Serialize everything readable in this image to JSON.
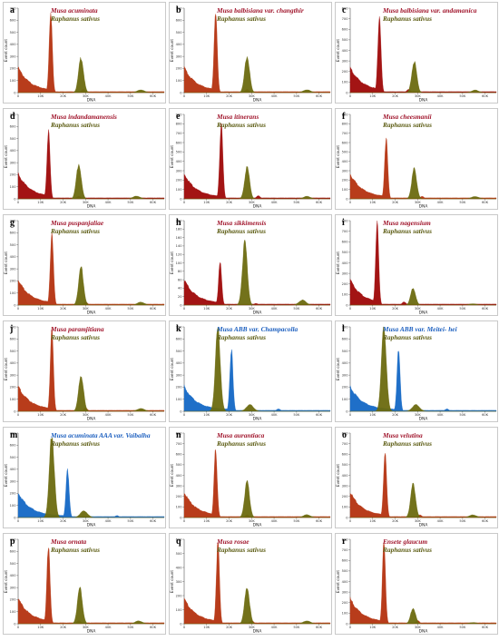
{
  "colors": {
    "musa_red": "#a31414",
    "musa_brown": "#b83c1b",
    "musa_blue": "#1f6fc8",
    "raphanus_olive": "#6b6a0f",
    "label_red": "#a0142b",
    "label_olive": "#5a5a10",
    "label_blue": "#1c5fbf"
  },
  "chart_data": [
    {
      "panel": "a",
      "type": "area",
      "label_species": "Musa acuminata",
      "label_ref": "Raphanus sativus",
      "label_color": "red",
      "fill": "musa_brown",
      "xlabel": "DNA",
      "ylabel": "Event count",
      "xlim": [
        0,
        65000
      ],
      "ylim": [
        0,
        700
      ],
      "x_ticks": [
        "0",
        "10K",
        "20K",
        "30K",
        "40K",
        "50K",
        "60K"
      ],
      "y_ticks": [
        "0",
        "100",
        "200",
        "300",
        "400",
        "500",
        "600",
        "700"
      ],
      "series": [
        {
          "name": "Musa acuminata",
          "peak_x": 14500,
          "peak_count": 690
        },
        {
          "name": "Raphanus sativus",
          "peak_x": 28000,
          "peak_count": 290
        }
      ]
    },
    {
      "panel": "b",
      "type": "area",
      "label_species": "Musa balbisiana var. changthir",
      "label_ref": "Raphanus sativus",
      "label_color": "red",
      "fill": "musa_brown",
      "xlabel": "DNA",
      "ylabel": "Event count",
      "xlim": [
        0,
        65000
      ],
      "ylim": [
        0,
        700
      ],
      "x_ticks": [
        "0",
        "10K",
        "20K",
        "30K",
        "40K",
        "50K",
        "60K"
      ],
      "y_ticks": [
        "0",
        "100",
        "200",
        "300",
        "400",
        "500",
        "600",
        "700"
      ],
      "series": [
        {
          "name": "Musa balbisiana var. changthir",
          "peak_x": 14000,
          "peak_count": 690
        },
        {
          "name": "Raphanus sativus",
          "peak_x": 28000,
          "peak_count": 300
        }
      ]
    },
    {
      "panel": "c",
      "type": "area",
      "label_species": "Musa balbisiana var. andamanica",
      "label_ref": "Raphanus sativus",
      "label_color": "red",
      "fill": "musa_red",
      "xlabel": "DNA",
      "ylabel": "Event count",
      "xlim": [
        0,
        65000
      ],
      "ylim": [
        0,
        800
      ],
      "x_ticks": [
        "0",
        "10K",
        "20K",
        "30K",
        "40K",
        "50K",
        "60K"
      ],
      "y_ticks": [
        "0",
        "100",
        "200",
        "300",
        "400",
        "500",
        "600",
        "700",
        "800"
      ],
      "series": [
        {
          "name": "Musa balbisiana var. andamanica",
          "peak_x": 13000,
          "peak_count": 740
        },
        {
          "name": "Raphanus sativus",
          "peak_x": 28500,
          "peak_count": 300
        }
      ]
    },
    {
      "panel": "d",
      "type": "area",
      "label_species": "Musa indandamanensis",
      "label_ref": "Raphanus sativus",
      "label_color": "red",
      "fill": "musa_red",
      "xlabel": "DNA",
      "ylabel": "Event count",
      "xlim": [
        0,
        65000
      ],
      "ylim": [
        0,
        700
      ],
      "x_ticks": [
        "0",
        "10K",
        "20K",
        "30K",
        "40K",
        "50K",
        "60K"
      ],
      "y_ticks": [
        "0",
        "100",
        "200",
        "300",
        "400",
        "500",
        "600",
        "700"
      ],
      "series": [
        {
          "name": "Musa indandamanensis",
          "peak_x": 13500,
          "peak_count": 560
        },
        {
          "name": "Raphanus sativus",
          "peak_x": 27000,
          "peak_count": 290
        }
      ]
    },
    {
      "panel": "e",
      "type": "area",
      "label_species": "Musa itinerans",
      "label_ref": "Raphanus sativus",
      "label_color": "red",
      "fill": "musa_red",
      "xlabel": "DNA",
      "ylabel": "Event count",
      "xlim": [
        0,
        65000
      ],
      "ylim": [
        0,
        900
      ],
      "x_ticks": [
        "0",
        "10K",
        "20K",
        "30K",
        "40K",
        "50K",
        "60K"
      ],
      "y_ticks": [
        "0",
        "100",
        "200",
        "300",
        "400",
        "500",
        "600",
        "700",
        "800",
        "900"
      ],
      "series": [
        {
          "name": "Musa itinerans",
          "peak_x": 16500,
          "peak_count": 820
        },
        {
          "name": "Raphanus sativus",
          "peak_x": 28000,
          "peak_count": 340
        }
      ]
    },
    {
      "panel": "f",
      "type": "area",
      "label_species": "Musa cheesmanii",
      "label_ref": "Raphanus sativus",
      "label_color": "red",
      "fill": "musa_brown",
      "xlabel": "DNA",
      "ylabel": "Event count",
      "xlim": [
        0,
        65000
      ],
      "ylim": [
        0,
        900
      ],
      "x_ticks": [
        "0",
        "10K",
        "20K",
        "30K",
        "40K",
        "50K",
        "60K"
      ],
      "y_ticks": [
        "0",
        "100",
        "200",
        "300",
        "400",
        "500",
        "600",
        "700",
        "800",
        "900"
      ],
      "series": [
        {
          "name": "Musa cheesmanii",
          "peak_x": 16000,
          "peak_count": 650
        },
        {
          "name": "Raphanus sativus",
          "peak_x": 28500,
          "peak_count": 320
        }
      ]
    },
    {
      "panel": "g",
      "type": "area",
      "label_species": "Musa puspanjaliae",
      "label_ref": "Raphanus sativus",
      "label_color": "red",
      "fill": "musa_brown",
      "xlabel": "DNA",
      "ylabel": "Event count",
      "xlim": [
        0,
        65000
      ],
      "ylim": [
        0,
        700
      ],
      "x_ticks": [
        "0",
        "10K",
        "20K",
        "30K",
        "40K",
        "50K",
        "60K"
      ],
      "y_ticks": [
        "0",
        "100",
        "200",
        "300",
        "400",
        "500",
        "600",
        "700"
      ],
      "series": [
        {
          "name": "Musa puspanjaliae",
          "peak_x": 15000,
          "peak_count": 620
        },
        {
          "name": "Raphanus sativus",
          "peak_x": 28000,
          "peak_count": 310
        }
      ]
    },
    {
      "panel": "h",
      "type": "area",
      "label_species": "Musa sikkimensis",
      "label_ref": "Raphanus sativus",
      "label_color": "red",
      "fill": "musa_red",
      "xlabel": "DNA",
      "ylabel": "Event count",
      "xlim": [
        0,
        65000
      ],
      "ylim": [
        0,
        200
      ],
      "x_ticks": [
        "0",
        "10K",
        "20K",
        "30K",
        "40K",
        "50K",
        "60K"
      ],
      "y_ticks": [
        "0",
        "20",
        "40",
        "60",
        "80",
        "100",
        "120",
        "140",
        "160",
        "180",
        "200"
      ],
      "series": [
        {
          "name": "Musa sikkimensis",
          "peak_x": 16000,
          "peak_count": 100
        },
        {
          "name": "Raphanus sativus",
          "peak_x": 27000,
          "peak_count": 150
        }
      ]
    },
    {
      "panel": "i",
      "type": "area",
      "label_species": "Musa nagensium",
      "label_ref": "Raphanus sativus",
      "label_color": "red",
      "fill": "musa_red",
      "xlabel": "DNA",
      "ylabel": "Event count",
      "xlim": [
        0,
        65000
      ],
      "ylim": [
        0,
        800
      ],
      "x_ticks": [
        "0",
        "10K",
        "20K",
        "30K",
        "40K",
        "50K",
        "60K"
      ],
      "y_ticks": [
        "0",
        "100",
        "200",
        "300",
        "400",
        "500",
        "600",
        "700",
        "800"
      ],
      "series": [
        {
          "name": "Musa nagensium",
          "peak_x": 12000,
          "peak_count": 760
        },
        {
          "name": "Raphanus sativus",
          "peak_x": 28000,
          "peak_count": 160
        }
      ]
    },
    {
      "panel": "j",
      "type": "area",
      "label_species": "Musa paramjitiana",
      "label_ref": "Raphanus sativus",
      "label_color": "red",
      "fill": "musa_brown",
      "xlabel": "DNA",
      "ylabel": "Event count",
      "xlim": [
        0,
        65000
      ],
      "ylim": [
        0,
        700
      ],
      "x_ticks": [
        "0",
        "10K",
        "20K",
        "30K",
        "40K",
        "50K",
        "60K"
      ],
      "y_ticks": [
        "0",
        "100",
        "200",
        "300",
        "400",
        "500",
        "600",
        "700"
      ],
      "series": [
        {
          "name": "Musa paramjitiana",
          "peak_x": 15000,
          "peak_count": 680
        },
        {
          "name": "Raphanus sativus",
          "peak_x": 28000,
          "peak_count": 300
        }
      ]
    },
    {
      "panel": "k",
      "type": "area",
      "label_species": "Musa ABB var. Champacolla",
      "label_ref": "Raphanus sativus",
      "label_color": "blue",
      "fill": "musa_blue",
      "xlabel": "DNA",
      "ylabel": "Event count",
      "xlim": [
        0,
        65000
      ],
      "ylim": [
        0,
        700
      ],
      "x_ticks": [
        "0",
        "10K",
        "20K",
        "30K",
        "40K",
        "50K",
        "60K"
      ],
      "y_ticks": [
        "0",
        "100",
        "200",
        "300",
        "400",
        "500",
        "600",
        "700"
      ],
      "series": [
        {
          "name": "Musa ABB var. Champacolla",
          "peak_x": 21000,
          "peak_count": 520
        },
        {
          "name": "Raphanus sativus",
          "peak_x": 15000,
          "peak_count": 690
        }
      ]
    },
    {
      "panel": "l",
      "type": "area",
      "label_species": "Musa ABB var. Meitei- hei",
      "label_ref": "Raphanus sativus",
      "label_color": "blue",
      "fill": "musa_blue",
      "xlabel": "DNA",
      "ylabel": "Event count",
      "xlim": [
        0,
        65000
      ],
      "ylim": [
        0,
        700
      ],
      "x_ticks": [
        "0",
        "10K",
        "20K",
        "30K",
        "40K",
        "50K",
        "60K"
      ],
      "y_ticks": [
        "0",
        "100",
        "200",
        "300",
        "400",
        "500",
        "600",
        "700"
      ],
      "series": [
        {
          "name": "Musa ABB var. Meitei- hei",
          "peak_x": 21500,
          "peak_count": 500
        },
        {
          "name": "Raphanus sativus",
          "peak_x": 15000,
          "peak_count": 690
        }
      ]
    },
    {
      "panel": "m",
      "type": "area",
      "label_species": "Musa acuminata AAA var. Vaibalha",
      "label_ref": "Raphanus sativus",
      "label_color": "blue",
      "fill": "musa_blue",
      "xlabel": "DNA",
      "ylabel": "Event count",
      "xlim": [
        0,
        65000
      ],
      "ylim": [
        0,
        700
      ],
      "x_ticks": [
        "0",
        "10K",
        "20K",
        "30K",
        "40K",
        "50K",
        "60K"
      ],
      "y_ticks": [
        "0",
        "100",
        "200",
        "300",
        "400",
        "500",
        "600",
        "700"
      ],
      "series": [
        {
          "name": "Musa acuminata AAA var. Vaibalha",
          "peak_x": 22000,
          "peak_count": 400
        },
        {
          "name": "Raphanus sativus",
          "peak_x": 15000,
          "peak_count": 690
        }
      ]
    },
    {
      "panel": "n",
      "type": "area",
      "label_species": "Musa aurantiaca",
      "label_ref": "Raphanus sativus",
      "label_color": "red",
      "fill": "musa_brown",
      "xlabel": "DNA",
      "ylabel": "Event count",
      "xlim": [
        0,
        65000
      ],
      "ylim": [
        0,
        800
      ],
      "x_ticks": [
        "0",
        "10K",
        "20K",
        "30K",
        "40K",
        "50K",
        "60K"
      ],
      "y_ticks": [
        "0",
        "100",
        "200",
        "300",
        "400",
        "500",
        "600",
        "700",
        "800"
      ],
      "series": [
        {
          "name": "Musa aurantiaca",
          "peak_x": 14000,
          "peak_count": 640
        },
        {
          "name": "Raphanus sativus",
          "peak_x": 28000,
          "peak_count": 340
        }
      ]
    },
    {
      "panel": "o",
      "type": "area",
      "label_species": "Musa velutina",
      "label_ref": "Raphanus sativus",
      "label_color": "red",
      "fill": "musa_brown",
      "xlabel": "DNA",
      "ylabel": "Event count",
      "xlim": [
        0,
        65000
      ],
      "ylim": [
        0,
        800
      ],
      "x_ticks": [
        "0",
        "10K",
        "20K",
        "30K",
        "40K",
        "50K",
        "60K"
      ],
      "y_ticks": [
        "0",
        "100",
        "200",
        "300",
        "400",
        "500",
        "600",
        "700",
        "800"
      ],
      "series": [
        {
          "name": "Musa velutina",
          "peak_x": 15500,
          "peak_count": 610
        },
        {
          "name": "Raphanus sativus",
          "peak_x": 28000,
          "peak_count": 320
        }
      ]
    },
    {
      "panel": "p",
      "type": "area",
      "label_species": "Musa ornata",
      "label_ref": "Raphanus sativus",
      "label_color": "red",
      "fill": "musa_brown",
      "xlabel": "DNA",
      "ylabel": "Event count",
      "xlim": [
        0,
        65000
      ],
      "ylim": [
        0,
        700
      ],
      "x_ticks": [
        "0",
        "10K",
        "20K",
        "30K",
        "40K",
        "50K",
        "60K"
      ],
      "y_ticks": [
        "0",
        "100",
        "200",
        "300",
        "400",
        "500",
        "600",
        "700"
      ],
      "series": [
        {
          "name": "Musa ornata",
          "peak_x": 13500,
          "peak_count": 660
        },
        {
          "name": "Raphanus sativus",
          "peak_x": 27500,
          "peak_count": 300
        }
      ]
    },
    {
      "panel": "q",
      "type": "area",
      "label_species": "Musa rosae",
      "label_ref": "Raphanus sativus",
      "label_color": "red",
      "fill": "musa_brown",
      "xlabel": "DNA",
      "ylabel": "Event count",
      "xlim": [
        0,
        65000
      ],
      "ylim": [
        0,
        600
      ],
      "x_ticks": [
        "0",
        "10K",
        "20K",
        "30K",
        "40K",
        "50K",
        "60K"
      ],
      "y_ticks": [
        "0",
        "100",
        "200",
        "300",
        "400",
        "500",
        "600"
      ],
      "series": [
        {
          "name": "Musa rosae",
          "peak_x": 15000,
          "peak_count": 580
        },
        {
          "name": "Raphanus sativus",
          "peak_x": 28000,
          "peak_count": 260
        }
      ]
    },
    {
      "panel": "r",
      "type": "area",
      "label_species": "Ensete glaucum",
      "label_ref": "Raphanus sativus",
      "label_color": "red",
      "fill": "musa_brown",
      "xlabel": "DNA",
      "ylabel": "Event count",
      "xlim": [
        0,
        65000
      ],
      "ylim": [
        0,
        800
      ],
      "x_ticks": [
        "0",
        "10K",
        "20K",
        "30K",
        "40K",
        "50K",
        "60K"
      ],
      "y_ticks": [
        "0",
        "100",
        "200",
        "300",
        "400",
        "500",
        "600",
        "700",
        "800"
      ],
      "series": [
        {
          "name": "Ensete glaucum",
          "peak_x": 15000,
          "peak_count": 760
        },
        {
          "name": "Raphanus sativus",
          "peak_x": 28000,
          "peak_count": 150
        }
      ]
    }
  ]
}
